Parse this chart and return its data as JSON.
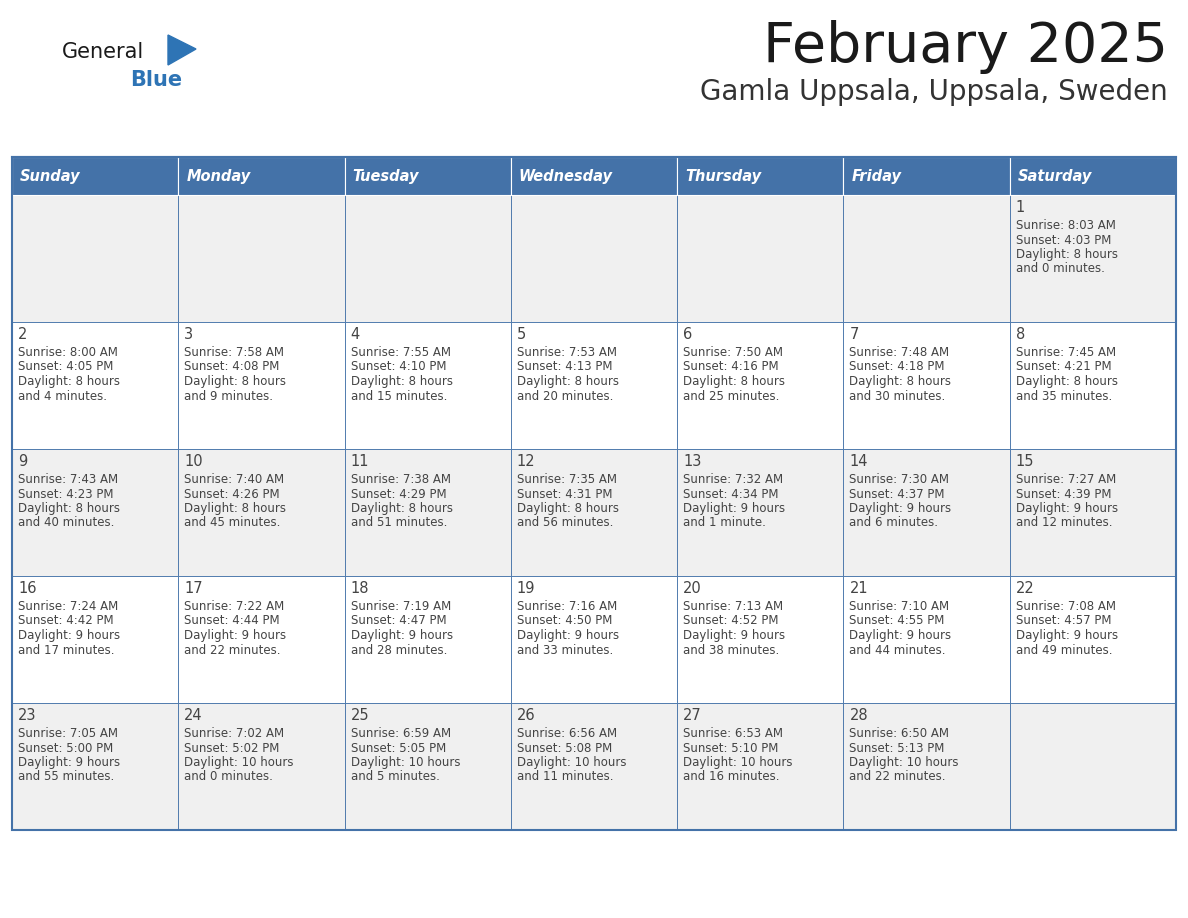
{
  "title": "February 2025",
  "subtitle": "Gamla Uppsala, Uppsala, Sweden",
  "days_of_week": [
    "Sunday",
    "Monday",
    "Tuesday",
    "Wednesday",
    "Thursday",
    "Friday",
    "Saturday"
  ],
  "header_bg": "#4472a8",
  "header_text": "#ffffff",
  "cell_bg_odd": "#f0f0f0",
  "cell_bg_even": "#ffffff",
  "border_color": "#4472a8",
  "text_color": "#444444",
  "title_color": "#1a1a1a",
  "subtitle_color": "#333333",
  "logo_general_color": "#1a1a1a",
  "logo_blue_color": "#2e74b5",
  "calendar_data": [
    [
      null,
      null,
      null,
      null,
      null,
      null,
      {
        "day": "1",
        "sunrise": "8:03 AM",
        "sunset": "4:03 PM",
        "daylight1": "8 hours",
        "daylight2": "and 0 minutes."
      }
    ],
    [
      {
        "day": "2",
        "sunrise": "8:00 AM",
        "sunset": "4:05 PM",
        "daylight1": "8 hours",
        "daylight2": "and 4 minutes."
      },
      {
        "day": "3",
        "sunrise": "7:58 AM",
        "sunset": "4:08 PM",
        "daylight1": "8 hours",
        "daylight2": "and 9 minutes."
      },
      {
        "day": "4",
        "sunrise": "7:55 AM",
        "sunset": "4:10 PM",
        "daylight1": "8 hours",
        "daylight2": "and 15 minutes."
      },
      {
        "day": "5",
        "sunrise": "7:53 AM",
        "sunset": "4:13 PM",
        "daylight1": "8 hours",
        "daylight2": "and 20 minutes."
      },
      {
        "day": "6",
        "sunrise": "7:50 AM",
        "sunset": "4:16 PM",
        "daylight1": "8 hours",
        "daylight2": "and 25 minutes."
      },
      {
        "day": "7",
        "sunrise": "7:48 AM",
        "sunset": "4:18 PM",
        "daylight1": "8 hours",
        "daylight2": "and 30 minutes."
      },
      {
        "day": "8",
        "sunrise": "7:45 AM",
        "sunset": "4:21 PM",
        "daylight1": "8 hours",
        "daylight2": "and 35 minutes."
      }
    ],
    [
      {
        "day": "9",
        "sunrise": "7:43 AM",
        "sunset": "4:23 PM",
        "daylight1": "8 hours",
        "daylight2": "and 40 minutes."
      },
      {
        "day": "10",
        "sunrise": "7:40 AM",
        "sunset": "4:26 PM",
        "daylight1": "8 hours",
        "daylight2": "and 45 minutes."
      },
      {
        "day": "11",
        "sunrise": "7:38 AM",
        "sunset": "4:29 PM",
        "daylight1": "8 hours",
        "daylight2": "and 51 minutes."
      },
      {
        "day": "12",
        "sunrise": "7:35 AM",
        "sunset": "4:31 PM",
        "daylight1": "8 hours",
        "daylight2": "and 56 minutes."
      },
      {
        "day": "13",
        "sunrise": "7:32 AM",
        "sunset": "4:34 PM",
        "daylight1": "9 hours",
        "daylight2": "and 1 minute."
      },
      {
        "day": "14",
        "sunrise": "7:30 AM",
        "sunset": "4:37 PM",
        "daylight1": "9 hours",
        "daylight2": "and 6 minutes."
      },
      {
        "day": "15",
        "sunrise": "7:27 AM",
        "sunset": "4:39 PM",
        "daylight1": "9 hours",
        "daylight2": "and 12 minutes."
      }
    ],
    [
      {
        "day": "16",
        "sunrise": "7:24 AM",
        "sunset": "4:42 PM",
        "daylight1": "9 hours",
        "daylight2": "and 17 minutes."
      },
      {
        "day": "17",
        "sunrise": "7:22 AM",
        "sunset": "4:44 PM",
        "daylight1": "9 hours",
        "daylight2": "and 22 minutes."
      },
      {
        "day": "18",
        "sunrise": "7:19 AM",
        "sunset": "4:47 PM",
        "daylight1": "9 hours",
        "daylight2": "and 28 minutes."
      },
      {
        "day": "19",
        "sunrise": "7:16 AM",
        "sunset": "4:50 PM",
        "daylight1": "9 hours",
        "daylight2": "and 33 minutes."
      },
      {
        "day": "20",
        "sunrise": "7:13 AM",
        "sunset": "4:52 PM",
        "daylight1": "9 hours",
        "daylight2": "and 38 minutes."
      },
      {
        "day": "21",
        "sunrise": "7:10 AM",
        "sunset": "4:55 PM",
        "daylight1": "9 hours",
        "daylight2": "and 44 minutes."
      },
      {
        "day": "22",
        "sunrise": "7:08 AM",
        "sunset": "4:57 PM",
        "daylight1": "9 hours",
        "daylight2": "and 49 minutes."
      }
    ],
    [
      {
        "day": "23",
        "sunrise": "7:05 AM",
        "sunset": "5:00 PM",
        "daylight1": "9 hours",
        "daylight2": "and 55 minutes."
      },
      {
        "day": "24",
        "sunrise": "7:02 AM",
        "sunset": "5:02 PM",
        "daylight1": "10 hours",
        "daylight2": "and 0 minutes."
      },
      {
        "day": "25",
        "sunrise": "6:59 AM",
        "sunset": "5:05 PM",
        "daylight1": "10 hours",
        "daylight2": "and 5 minutes."
      },
      {
        "day": "26",
        "sunrise": "6:56 AM",
        "sunset": "5:08 PM",
        "daylight1": "10 hours",
        "daylight2": "and 11 minutes."
      },
      {
        "day": "27",
        "sunrise": "6:53 AM",
        "sunset": "5:10 PM",
        "daylight1": "10 hours",
        "daylight2": "and 16 minutes."
      },
      {
        "day": "28",
        "sunrise": "6:50 AM",
        "sunset": "5:13 PM",
        "daylight1": "10 hours",
        "daylight2": "and 22 minutes."
      },
      null
    ]
  ]
}
